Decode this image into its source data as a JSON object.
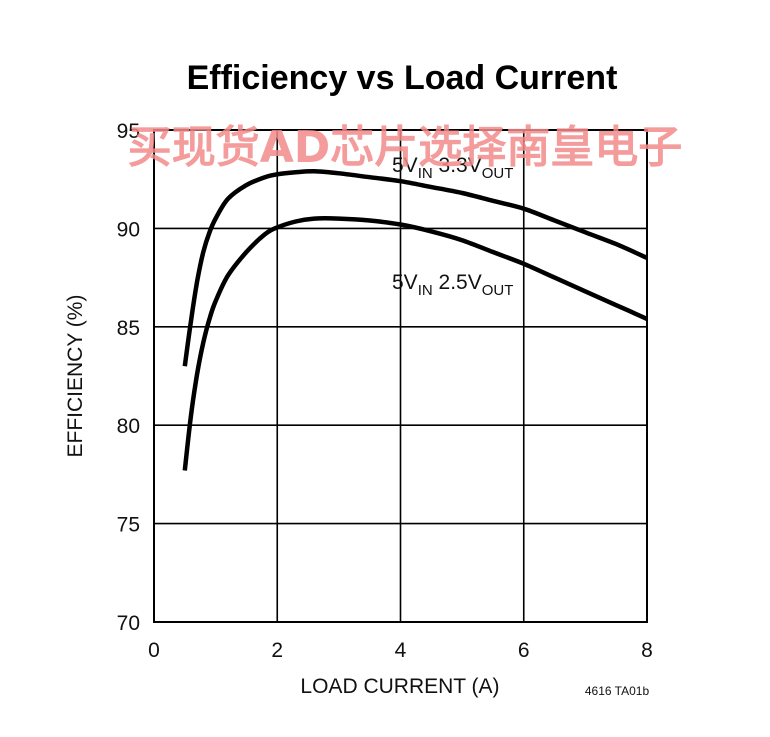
{
  "chart_data": {
    "type": "line",
    "title": "Efficiency vs Load Current",
    "xlabel": "LOAD CURRENT (A)",
    "ylabel": "EFFICIENCY (%)",
    "xlim": [
      0,
      8
    ],
    "ylim": [
      70,
      95
    ],
    "xticks": [
      "0",
      "2",
      "4",
      "6",
      "8"
    ],
    "yticks": [
      "70",
      "75",
      "80",
      "85",
      "90",
      "95"
    ],
    "grid": true,
    "series": [
      {
        "name_parts": [
          "5V",
          "IN",
          " 3.3V",
          "OUT"
        ],
        "x": [
          0.5,
          0.6,
          0.7,
          0.8,
          0.9,
          1.0,
          1.2,
          1.5,
          1.8,
          2.0,
          2.3,
          2.6,
          3.0,
          3.5,
          4.0,
          4.5,
          5.0,
          5.5,
          6.0,
          6.5,
          7.0,
          7.5,
          8.0
        ],
        "y": [
          83.0,
          85.3,
          87.3,
          88.8,
          89.8,
          90.5,
          91.5,
          92.2,
          92.6,
          92.75,
          92.85,
          92.9,
          92.8,
          92.6,
          92.4,
          92.1,
          91.8,
          91.4,
          91.0,
          90.4,
          89.8,
          89.2,
          88.5
        ]
      },
      {
        "name_parts": [
          "5V",
          "IN",
          " 2.5V",
          "OUT"
        ],
        "x": [
          0.5,
          0.6,
          0.7,
          0.8,
          0.9,
          1.0,
          1.2,
          1.5,
          1.8,
          2.0,
          2.3,
          2.6,
          3.0,
          3.5,
          4.0,
          4.5,
          5.0,
          5.5,
          6.0,
          6.5,
          7.0,
          7.5,
          8.0
        ],
        "y": [
          77.7,
          80.5,
          82.6,
          84.2,
          85.4,
          86.3,
          87.6,
          88.8,
          89.7,
          90.05,
          90.35,
          90.5,
          90.5,
          90.4,
          90.2,
          89.85,
          89.4,
          88.8,
          88.2,
          87.5,
          86.8,
          86.1,
          85.4
        ]
      }
    ],
    "annotations": {
      "figure_code": "4616 TA01b",
      "watermark": "买现货AD芯片选择南皇电子"
    }
  }
}
